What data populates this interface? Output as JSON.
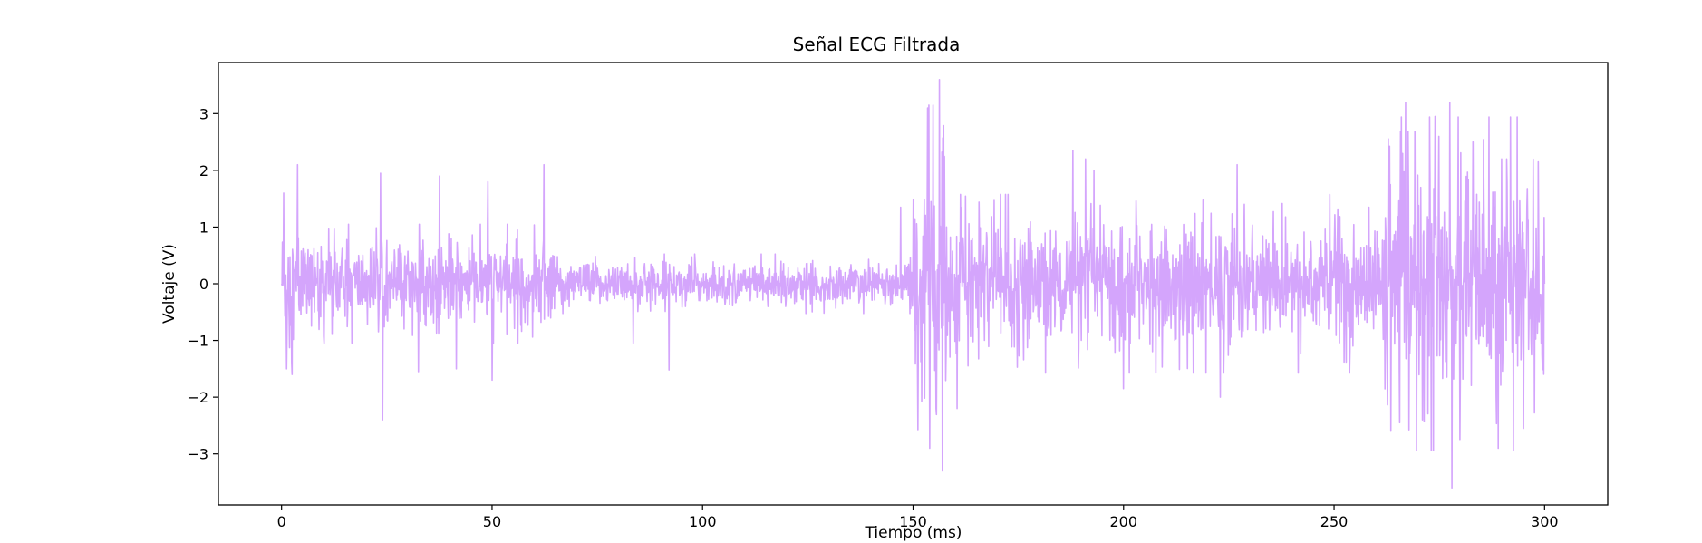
{
  "chart_data": {
    "type": "line",
    "title": "Señal ECG Filtrada",
    "xlabel": "Tiempo (ms)",
    "ylabel": "Voltaje (V)",
    "xlim": [
      -15,
      315
    ],
    "ylim": [
      -3.9,
      3.9
    ],
    "x_ticks": [
      0,
      50,
      100,
      150,
      200,
      250,
      300
    ],
    "y_ticks": [
      -3,
      -2,
      -1,
      0,
      1,
      2,
      3
    ],
    "grid": false,
    "line_color": "#d4a5fc",
    "series": [
      {
        "x_start": 0,
        "x_end": 300,
        "points": 3000,
        "segments": [
          {
            "x0": 0,
            "x1": 5,
            "amp": 1.6
          },
          {
            "x0": 5,
            "x1": 30,
            "amp": 1.0
          },
          {
            "x0": 30,
            "x1": 65,
            "amp": 1.0
          },
          {
            "x0": 65,
            "x1": 150,
            "amp": 0.5
          },
          {
            "x0": 150,
            "x1": 158,
            "amp": 3.0
          },
          {
            "x0": 158,
            "x1": 262,
            "amp": 1.5
          },
          {
            "x0": 262,
            "x1": 300,
            "amp": 2.8
          }
        ],
        "peaks": [
          {
            "x": 0.5,
            "y": 1.6
          },
          {
            "x": 1.2,
            "y": -1.5
          },
          {
            "x": 2.5,
            "y": -1.6
          },
          {
            "x": 3.8,
            "y": 2.1
          },
          {
            "x": 23.5,
            "y": 1.95
          },
          {
            "x": 24,
            "y": -2.4
          },
          {
            "x": 32.5,
            "y": -1.55
          },
          {
            "x": 37.5,
            "y": 1.9
          },
          {
            "x": 41.5,
            "y": -1.5
          },
          {
            "x": 49,
            "y": 1.8
          },
          {
            "x": 50,
            "y": -1.7
          },
          {
            "x": 62.3,
            "y": 2.1
          },
          {
            "x": 83.5,
            "y": -1.05
          },
          {
            "x": 92,
            "y": -1.52
          },
          {
            "x": 147,
            "y": 1.35
          },
          {
            "x": 153.5,
            "y": 3.1
          },
          {
            "x": 154,
            "y": -2.9
          },
          {
            "x": 155.5,
            "y": -2.2
          },
          {
            "x": 156.3,
            "y": 3.6
          },
          {
            "x": 157,
            "y": -3.3
          },
          {
            "x": 160.5,
            "y": -2.2
          },
          {
            "x": 188,
            "y": 2.35
          },
          {
            "x": 191,
            "y": 2.2
          },
          {
            "x": 193,
            "y": 2.0
          },
          {
            "x": 200,
            "y": -1.85
          },
          {
            "x": 223,
            "y": -2.0
          },
          {
            "x": 227,
            "y": 2.1
          },
          {
            "x": 263.5,
            "y": -2.6
          },
          {
            "x": 267,
            "y": 3.2
          },
          {
            "x": 271,
            "y": -2.4
          },
          {
            "x": 274,
            "y": 2.95
          },
          {
            "x": 277.5,
            "y": 3.2
          },
          {
            "x": 278,
            "y": -3.6
          },
          {
            "x": 283,
            "y": 2.5
          },
          {
            "x": 289,
            "y": -2.9
          },
          {
            "x": 291,
            "y": 2.2
          },
          {
            "x": 295,
            "y": -2.55
          },
          {
            "x": 298.5,
            "y": 2.15
          }
        ]
      }
    ]
  }
}
